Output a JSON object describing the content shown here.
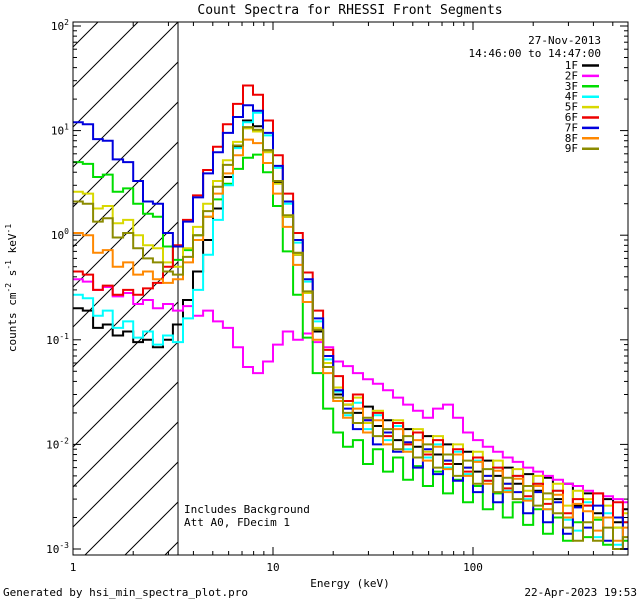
{
  "title": "Count Spectra for RHESSI Front Segments",
  "header": {
    "date": "27-Nov-2013",
    "time_range": "14:46:00 to 14:47:00",
    "text_color": "#b00000"
  },
  "annotations": {
    "line1": "Includes Background",
    "line2": "Att A0, FDecim 1"
  },
  "footer": {
    "left": "Generated by hsi_min_spectra_plot.pro",
    "right": "22-Apr-2023 19:53"
  },
  "chart_data": {
    "type": "line",
    "style": "histogram-step",
    "title": "Count Spectra for RHESSI Front Segments",
    "legend_position": "top-right-inside",
    "x_axis": {
      "label": "Energy (keV)",
      "scale": "log",
      "range_kev": [
        1,
        600
      ],
      "tick_values": [
        1,
        10,
        100
      ],
      "tick_labels": [
        "1",
        "10",
        "100"
      ]
    },
    "y_axis": {
      "scale": "log",
      "range": [
        0.001,
        100
      ],
      "tick_exponents": [
        2,
        1,
        0,
        -1,
        -2,
        -3
      ],
      "label_parts": [
        {
          "t": "counts cm",
          "sup": false
        },
        {
          "t": "-2",
          "sup": true
        },
        {
          "t": " s",
          "sup": false
        },
        {
          "t": "-1",
          "sup": true
        },
        {
          "t": " keV",
          "sup": false
        },
        {
          "t": "-1",
          "sup": true
        }
      ]
    },
    "background_region": {
      "x_range_kev": [
        1,
        3.35
      ],
      "style": "diagonal-hatch"
    },
    "energies_kev": [
      1.0,
      1.12,
      1.26,
      1.41,
      1.58,
      1.78,
      2.0,
      2.24,
      2.51,
      2.82,
      3.16,
      3.55,
      3.98,
      4.47,
      5.01,
      5.62,
      6.31,
      7.08,
      7.94,
      8.91,
      10.0,
      11.2,
      12.6,
      14.1,
      15.8,
      17.8,
      20.0,
      22.4,
      25.1,
      28.2,
      31.6,
      35.5,
      39.8,
      44.7,
      50.1,
      56.2,
      63.1,
      70.8,
      79.4,
      89.1,
      100,
      112,
      126,
      141,
      158,
      178,
      200,
      224,
      251,
      282,
      316,
      355,
      398,
      447,
      501,
      562
    ],
    "series": [
      {
        "name": "1F",
        "color": "#000000",
        "values": [
          0.2,
          0.19,
          0.13,
          0.14,
          0.11,
          0.12,
          0.095,
          0.1,
          0.085,
          0.1,
          0.14,
          0.24,
          0.45,
          0.9,
          1.8,
          3.6,
          7.0,
          12.5,
          11.0,
          6.5,
          3.2,
          1.5,
          0.65,
          0.28,
          0.12,
          0.055,
          0.03,
          0.024,
          0.02,
          0.023,
          0.015,
          0.017,
          0.011,
          0.014,
          0.0095,
          0.012,
          0.008,
          0.01,
          0.0065,
          0.0085,
          0.0055,
          0.007,
          0.005,
          0.006,
          0.0042,
          0.0052,
          0.0036,
          0.0048,
          0.003,
          0.0042,
          0.0026,
          0.0034,
          0.0022,
          0.003,
          0.0018,
          0.0024
        ]
      },
      {
        "name": "2F",
        "color": "#ff00ff",
        "values": [
          0.38,
          0.36,
          0.3,
          0.32,
          0.26,
          0.28,
          0.22,
          0.24,
          0.2,
          0.22,
          0.19,
          0.21,
          0.17,
          0.19,
          0.15,
          0.13,
          0.085,
          0.055,
          0.048,
          0.062,
          0.09,
          0.12,
          0.1,
          0.115,
          0.095,
          0.085,
          0.062,
          0.056,
          0.048,
          0.042,
          0.038,
          0.033,
          0.028,
          0.024,
          0.021,
          0.018,
          0.022,
          0.024,
          0.018,
          0.013,
          0.011,
          0.0095,
          0.0085,
          0.0075,
          0.0068,
          0.006,
          0.0055,
          0.005,
          0.0046,
          0.0042,
          0.004,
          0.0036,
          0.0034,
          0.0032,
          0.003,
          0.0028
        ]
      },
      {
        "name": "3F",
        "color": "#00dd00",
        "values": [
          5.0,
          4.8,
          3.6,
          3.8,
          2.6,
          2.8,
          2.0,
          1.6,
          1.5,
          0.78,
          0.58,
          0.72,
          1.0,
          1.5,
          2.2,
          3.1,
          4.3,
          5.5,
          5.9,
          4.0,
          1.9,
          0.7,
          0.27,
          0.105,
          0.048,
          0.022,
          0.013,
          0.0095,
          0.011,
          0.0065,
          0.009,
          0.0055,
          0.0075,
          0.0046,
          0.0062,
          0.004,
          0.0055,
          0.0034,
          0.0046,
          0.0028,
          0.004,
          0.0024,
          0.0034,
          0.002,
          0.0028,
          0.0017,
          0.0024,
          0.0014,
          0.002,
          0.0012,
          0.0018,
          0.0013,
          0.0019,
          0.0011,
          0.0016,
          0.0012
        ]
      },
      {
        "name": "4F",
        "color": "#00ffff",
        "values": [
          0.27,
          0.25,
          0.17,
          0.19,
          0.13,
          0.15,
          0.105,
          0.12,
          0.09,
          0.11,
          0.095,
          0.16,
          0.3,
          0.65,
          1.4,
          3.0,
          6.8,
          12.0,
          14.8,
          9.0,
          4.4,
          2.0,
          0.85,
          0.36,
          0.15,
          0.065,
          0.032,
          0.019,
          0.025,
          0.014,
          0.019,
          0.011,
          0.015,
          0.009,
          0.013,
          0.0075,
          0.01,
          0.006,
          0.0085,
          0.0052,
          0.007,
          0.0045,
          0.006,
          0.0036,
          0.005,
          0.003,
          0.0042,
          0.0024,
          0.0036,
          0.0019,
          0.0015,
          0.0028,
          0.0013,
          0.0022,
          0.0011,
          0.0018
        ]
      },
      {
        "name": "5F",
        "color": "#d8d800",
        "values": [
          2.6,
          2.5,
          1.8,
          1.9,
          1.3,
          1.4,
          1.0,
          0.8,
          0.75,
          0.55,
          0.5,
          0.75,
          1.2,
          2.0,
          3.3,
          5.2,
          7.8,
          10.5,
          9.8,
          6.2,
          3.1,
          1.5,
          0.65,
          0.28,
          0.13,
          0.06,
          0.035,
          0.024,
          0.028,
          0.016,
          0.021,
          0.013,
          0.017,
          0.01,
          0.014,
          0.0085,
          0.012,
          0.007,
          0.01,
          0.006,
          0.0085,
          0.005,
          0.007,
          0.0042,
          0.0058,
          0.0036,
          0.005,
          0.003,
          0.0042,
          0.0026,
          0.0036,
          0.003,
          0.002,
          0.0026,
          0.0016,
          0.0022
        ]
      },
      {
        "name": "6F",
        "color": "#ee0000",
        "values": [
          0.45,
          0.42,
          0.3,
          0.33,
          0.27,
          0.3,
          0.27,
          0.31,
          0.35,
          0.5,
          0.8,
          1.4,
          2.4,
          4.2,
          7.0,
          11.5,
          18.0,
          27.0,
          22.0,
          12.5,
          5.8,
          2.5,
          1.05,
          0.44,
          0.19,
          0.08,
          0.045,
          0.026,
          0.03,
          0.017,
          0.02,
          0.012,
          0.016,
          0.01,
          0.013,
          0.008,
          0.011,
          0.0065,
          0.009,
          0.0055,
          0.0075,
          0.0045,
          0.006,
          0.0038,
          0.005,
          0.0032,
          0.0042,
          0.0027,
          0.0036,
          0.0022,
          0.003,
          0.0026,
          0.0034,
          0.002,
          0.0028,
          0.0018
        ]
      },
      {
        "name": "7F",
        "color": "#0000dd",
        "values": [
          12.0,
          11.5,
          8.3,
          8.0,
          5.3,
          5.0,
          3.3,
          2.1,
          2.0,
          1.05,
          0.78,
          1.35,
          2.3,
          3.9,
          6.2,
          9.5,
          13.5,
          17.5,
          15.5,
          9.5,
          4.6,
          2.1,
          0.9,
          0.38,
          0.16,
          0.07,
          0.033,
          0.022,
          0.014,
          0.017,
          0.01,
          0.013,
          0.0085,
          0.0105,
          0.006,
          0.009,
          0.0052,
          0.007,
          0.0045,
          0.006,
          0.0035,
          0.005,
          0.0028,
          0.0042,
          0.0035,
          0.0022,
          0.0035,
          0.0018,
          0.0028,
          0.0014,
          0.0025,
          0.0016,
          0.0026,
          0.0012,
          0.002,
          0.001
        ]
      },
      {
        "name": "8F",
        "color": "#ff8800",
        "values": [
          1.05,
          1.0,
          0.68,
          0.72,
          0.5,
          0.55,
          0.42,
          0.45,
          0.38,
          0.35,
          0.38,
          0.55,
          0.9,
          1.5,
          2.5,
          3.9,
          5.8,
          8.2,
          7.6,
          4.9,
          2.5,
          1.2,
          0.52,
          0.23,
          0.1,
          0.048,
          0.026,
          0.018,
          0.022,
          0.013,
          0.017,
          0.01,
          0.014,
          0.0085,
          0.011,
          0.007,
          0.0095,
          0.0058,
          0.008,
          0.005,
          0.0068,
          0.0042,
          0.0056,
          0.0035,
          0.0047,
          0.0029,
          0.004,
          0.0024,
          0.0033,
          0.002,
          0.0027,
          0.0023,
          0.0015,
          0.002,
          0.0012,
          0.0016
        ]
      },
      {
        "name": "9F",
        "color": "#8b8b00",
        "values": [
          2.1,
          2.0,
          1.35,
          1.45,
          0.95,
          1.05,
          0.75,
          0.6,
          0.55,
          0.45,
          0.42,
          0.62,
          1.0,
          1.7,
          2.9,
          4.7,
          7.2,
          10.8,
          10.2,
          6.5,
          3.3,
          1.55,
          0.68,
          0.29,
          0.125,
          0.055,
          0.028,
          0.02,
          0.016,
          0.018,
          0.012,
          0.014,
          0.009,
          0.012,
          0.0075,
          0.01,
          0.006,
          0.008,
          0.005,
          0.007,
          0.0042,
          0.0058,
          0.0035,
          0.0048,
          0.003,
          0.004,
          0.0026,
          0.0034,
          0.0022,
          0.0016,
          0.0012,
          0.0018,
          0.0012,
          0.0016,
          0.001,
          0.0013
        ]
      }
    ]
  }
}
